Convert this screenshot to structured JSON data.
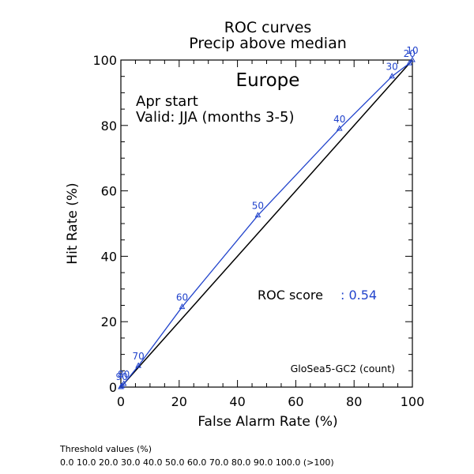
{
  "chart_data": {
    "type": "line",
    "title": "ROC curves",
    "subtitle": "Precip above median",
    "region": "Europe",
    "start_label": "Apr start",
    "valid_label": "Valid: JJA (months 3-5)",
    "xlabel": "False Alarm Rate (%)",
    "ylabel": "Hit Rate (%)",
    "xlim": [
      0,
      100
    ],
    "ylim": [
      0,
      100
    ],
    "xticks": [
      "0",
      "20",
      "40",
      "60",
      "80",
      "100"
    ],
    "yticks": [
      "0",
      "20",
      "40",
      "60",
      "80",
      "100"
    ],
    "roc_score_label": "ROC score",
    "roc_score_value": ": 0.54",
    "model_label": "GloSea5-GC2 (count)",
    "threshold_title": "Threshold values (%)",
    "threshold_values": "0.0 10.0 20.0 30.0 40.0 50.0 60.0 70.0 80.0 90.0 100.0 (>100)",
    "colors": {
      "series": "#2244cc",
      "diagonal": "#000000",
      "axis": "#000000"
    },
    "series": [
      {
        "points": [
          {
            "x": 100,
            "y": 100,
            "label": "10"
          },
          {
            "x": 99,
            "y": 99,
            "label": "20"
          },
          {
            "x": 93,
            "y": 95,
            "label": "30"
          },
          {
            "x": 75,
            "y": 79,
            "label": "40"
          },
          {
            "x": 47,
            "y": 52.5,
            "label": "50"
          },
          {
            "x": 21,
            "y": 24.5,
            "label": "60"
          },
          {
            "x": 6,
            "y": 6.5,
            "label": "70"
          },
          {
            "x": 1,
            "y": 1,
            "label": "80"
          },
          {
            "x": 0.3,
            "y": 0.3,
            "label": "90"
          },
          {
            "x": 0,
            "y": 0,
            "label": ""
          }
        ]
      }
    ]
  }
}
